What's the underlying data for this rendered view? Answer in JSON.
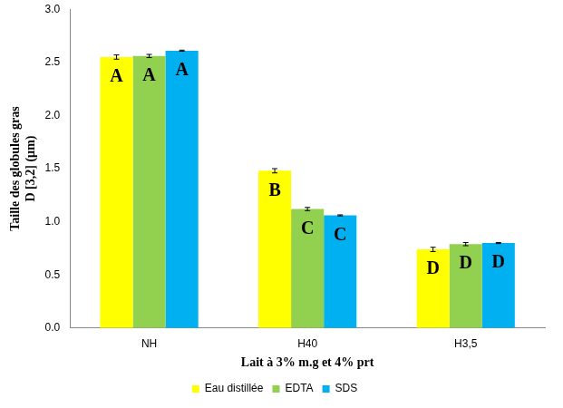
{
  "chart_data": {
    "type": "bar",
    "x_label": "Lait à 3% m.g et 4% prt",
    "y_label": [
      "Taille des globules gras",
      "D [3,2] (µm)"
    ],
    "categories": [
      "NH",
      "H40",
      "H3,5"
    ],
    "series": [
      {
        "name": "Eau distillée",
        "color": "#ffff00",
        "values": [
          2.55,
          1.48,
          0.74
        ],
        "errors": [
          0.02,
          0.02,
          0.02
        ],
        "annotations": [
          "A",
          "B",
          "D"
        ]
      },
      {
        "name": "EDTA",
        "color": "#92d050",
        "values": [
          2.56,
          1.12,
          0.79
        ],
        "errors": [
          0.015,
          0.015,
          0.015
        ],
        "annotations": [
          "A",
          "C",
          "D"
        ]
      },
      {
        "name": "SDS",
        "color": "#00b0f0",
        "values": [
          2.61,
          1.06,
          0.8
        ],
        "errors": [
          0.005,
          0.005,
          0.005
        ],
        "annotations": [
          "A",
          "C",
          "D"
        ]
      }
    ],
    "ylim": [
      0,
      3
    ],
    "yticks": [
      {
        "value": 0,
        "label": "0.0"
      },
      {
        "value": 0.5,
        "label": "0.5"
      },
      {
        "value": 1,
        "label": "1.0"
      },
      {
        "value": 1.5,
        "label": "1.5"
      },
      {
        "value": 2,
        "label": "2.0"
      },
      {
        "value": 2.5,
        "label": "2.5"
      },
      {
        "value": 3,
        "label": "3.0"
      }
    ],
    "grid": false,
    "legend": "bottom"
  }
}
